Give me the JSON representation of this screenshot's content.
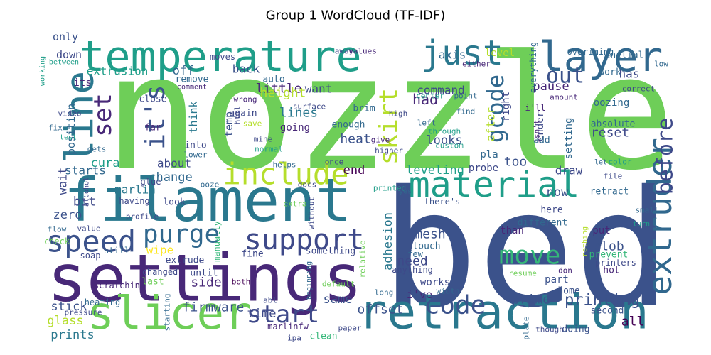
{
  "chart_data": {
    "type": "wordcloud",
    "title": "Group 1 WordCloud (TF-IDF)",
    "words": [
      "nozzle",
      "bed",
      "settings",
      "filament",
      "temperature",
      "retraction",
      "slicer",
      "line",
      "layer",
      "just",
      "material",
      "include",
      "support",
      "speed",
      "purge",
      "move",
      "code",
      "start",
      "extruder",
      "before",
      "out",
      "gcode",
      "skirt",
      "it's",
      "set",
      "only",
      "down",
      "extrusion",
      "off",
      "back",
      "little",
      "want",
      "command",
      "axis",
      "level",
      "had",
      "height",
      "lines",
      "temp",
      "think",
      "cura",
      "starts",
      "marlin",
      "about",
      "change",
      "heat",
      "end",
      "looks",
      "leveling",
      "too",
      "reset",
      "draw",
      "now",
      "blob",
      "printing",
      "all",
      "mesh",
      "need",
      "adhesion",
      "prime",
      "offset",
      "same",
      "time",
      "firmware",
      "side",
      "until",
      "stick",
      "glass",
      "prints",
      "bit",
      "zero",
      "wait",
      "wipe",
      "position",
      "after",
      "ender",
      "right",
      "setting",
      "pause",
      "oozing",
      "absolute",
      "has",
      "work",
      "initial",
      "priming",
      "over",
      "everything",
      "i'll",
      "isn't",
      "add",
      "correct",
      "low",
      "color",
      "retract",
      "file",
      "small",
      "turn",
      "here",
      "different",
      "put",
      "than",
      "prevent",
      "hot",
      "printers",
      "part",
      "home",
      "second",
      "doing",
      "though",
      "plate",
      "don",
      "resume",
      "works",
      "i've",
      "width",
      "long",
      "default",
      "paper",
      "ipa",
      "clean",
      "marlinfw",
      "abl",
      "both",
      "scratching",
      "changed",
      "last",
      "heating",
      "pressure",
      "starting",
      "still",
      "soap",
      "flow",
      "check",
      "value",
      "profile",
      "having",
      "glue",
      "look",
      "alcohol",
      "ooze",
      "into",
      "lower",
      "far",
      "close",
      "remove",
      "comment",
      "auto",
      "again",
      "wrong",
      "html",
      "save",
      "going",
      "mine",
      "normal",
      "helps",
      "surface",
      "brim",
      "high",
      "center",
      "point",
      "find",
      "left",
      "through",
      "custom",
      "give",
      "higher",
      "enough",
      "once",
      "printed",
      "yes",
      "docs",
      "without",
      "extra",
      "there's",
      "probe",
      "pla",
      "manually",
      "extrude",
      "fine",
      "something",
      "relative",
      "touch",
      "few",
      "anything",
      "beginning",
      "nothing",
      "amount",
      "video",
      "fix",
      "test",
      "gets",
      "its",
      "between",
      "working",
      "moves",
      "away",
      "values",
      "either",
      "let"
    ]
  }
}
